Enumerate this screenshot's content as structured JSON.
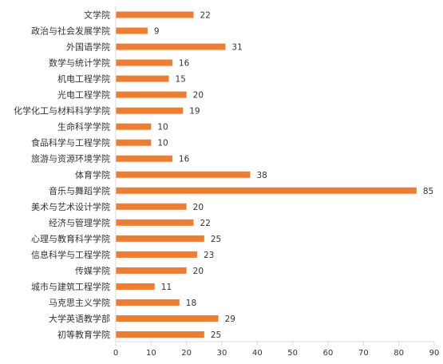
{
  "chart_data": {
    "type": "bar",
    "orientation": "horizontal",
    "categories": [
      "文学院",
      "政治与社会发展学院",
      "外国语学院",
      "数学与统计学院",
      "机电工程学院",
      "光电工程学院",
      "化学化工与材料科学学院",
      "生命科学学院",
      "食品科学与工程学院",
      "旅游与资源环境学院",
      "体育学院",
      "音乐与舞蹈学院",
      "美术与艺术设计学院",
      "经济与管理学院",
      "心理与教育科学学院",
      "信息科学与工程学院",
      "传媒学院",
      "城市与建筑工程学院",
      "马克思主义学院",
      "大学英语教学部",
      "初等教育学院"
    ],
    "values": [
      22,
      9,
      31,
      16,
      15,
      20,
      19,
      10,
      10,
      16,
      38,
      85,
      20,
      22,
      25,
      23,
      20,
      11,
      18,
      29,
      25
    ],
    "xlim": [
      0,
      90
    ],
    "xticks": [
      0,
      10,
      20,
      30,
      40,
      50,
      60,
      70,
      80,
      90
    ],
    "bar_color": "#ED7D31",
    "axis_color": "#D9D9D9",
    "grid": false,
    "legend": "none",
    "data_labels": true
  }
}
